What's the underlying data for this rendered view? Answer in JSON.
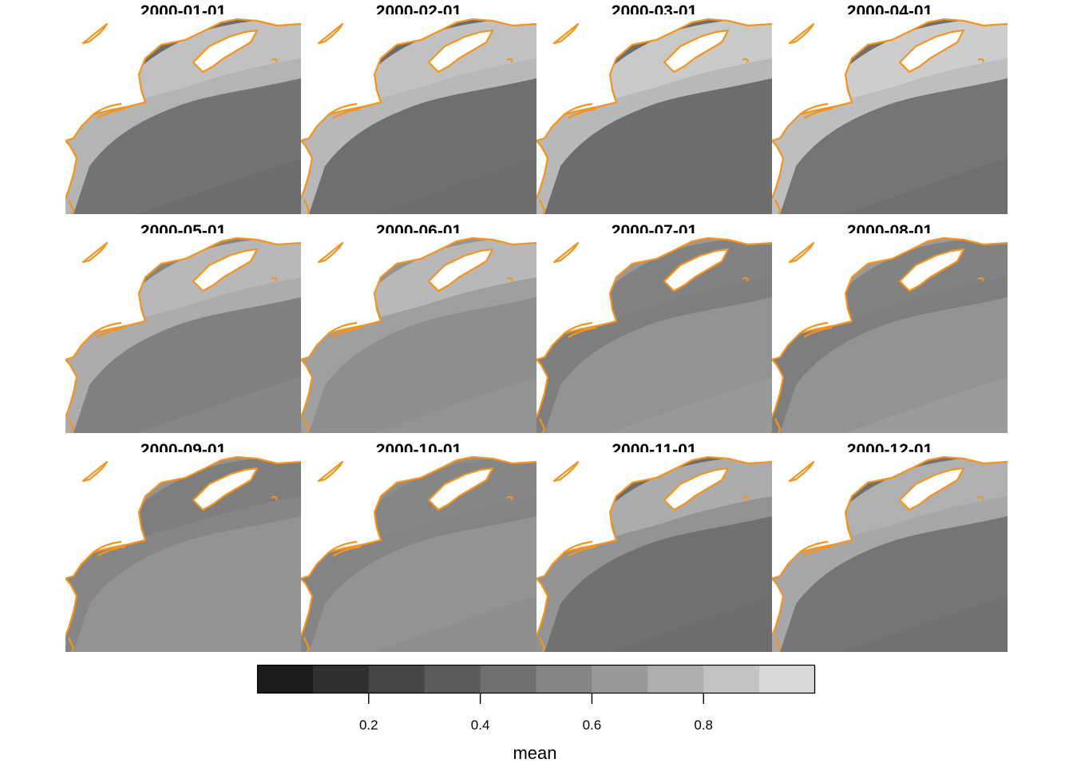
{
  "panels": [
    {
      "date": "2000-01-01",
      "shades": {
        "north": 0.84,
        "shelf": 0.78,
        "deep": 0.47,
        "far": 0.44
      }
    },
    {
      "date": "2000-02-01",
      "shades": {
        "north": 0.84,
        "shelf": 0.8,
        "deep": 0.45,
        "far": 0.44
      }
    },
    {
      "date": "2000-03-01",
      "shades": {
        "north": 0.88,
        "shelf": 0.8,
        "deep": 0.44,
        "far": 0.44
      }
    },
    {
      "date": "2000-04-01",
      "shades": {
        "north": 0.9,
        "shelf": 0.83,
        "deep": 0.48,
        "far": 0.45
      }
    },
    {
      "date": "2000-05-01",
      "shades": {
        "north": 0.8,
        "shelf": 0.74,
        "deep": 0.53,
        "far": 0.56
      }
    },
    {
      "date": "2000-06-01",
      "shades": {
        "north": 0.8,
        "shelf": 0.68,
        "deep": 0.6,
        "far": 0.62
      }
    },
    {
      "date": "2000-07-01",
      "shades": {
        "north": 0.54,
        "shelf": 0.52,
        "deep": 0.62,
        "far": 0.65
      }
    },
    {
      "date": "2000-08-01",
      "shades": {
        "north": 0.54,
        "shelf": 0.52,
        "deep": 0.62,
        "far": 0.66
      }
    },
    {
      "date": "2000-09-01",
      "shades": {
        "north": 0.52,
        "shelf": 0.56,
        "deep": 0.62,
        "far": 0.62
      }
    },
    {
      "date": "2000-10-01",
      "shades": {
        "north": 0.56,
        "shelf": 0.55,
        "deep": 0.62,
        "far": 0.6
      }
    },
    {
      "date": "2000-11-01",
      "shades": {
        "north": 0.74,
        "shelf": 0.62,
        "deep": 0.46,
        "far": 0.44
      }
    },
    {
      "date": "2000-12-01",
      "shades": {
        "north": 0.76,
        "shelf": 0.72,
        "deep": 0.48,
        "far": 0.46
      }
    }
  ],
  "legend": {
    "title": "mean",
    "bins": [
      0.05,
      0.15,
      0.25,
      0.35,
      0.45,
      0.55,
      0.65,
      0.75,
      0.85,
      0.95
    ],
    "ticks": [
      "0.2",
      "0.4",
      "0.6",
      "0.8"
    ],
    "range": [
      0,
      1
    ]
  },
  "colors": {
    "coastline": "#f5941d",
    "land": "#ffffff",
    "ramp_dark": "#111111",
    "ramp_light": "#e2e2e2"
  }
}
